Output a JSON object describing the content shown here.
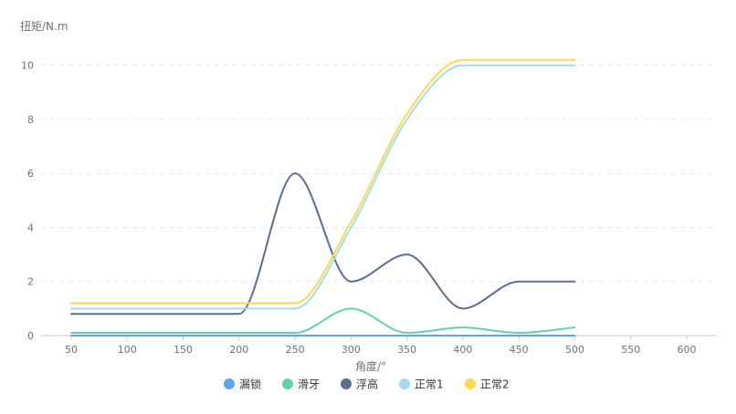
{
  "chart_data": {
    "type": "line",
    "ylabel": "扭矩/N.m",
    "xlabel": "角度/°",
    "xlim": [
      50,
      600
    ],
    "ylim": [
      0,
      11
    ],
    "x_ticks": [
      50,
      100,
      150,
      200,
      250,
      300,
      350,
      400,
      450,
      500,
      550,
      600
    ],
    "y_ticks": [
      0,
      2,
      4,
      6,
      8,
      10
    ],
    "grid": "horizontal-dashed",
    "legend_position": "bottom-center",
    "smooth": true,
    "series": [
      {
        "name": "漏锁",
        "color": "#5fa3e8",
        "x": [
          50,
          100,
          150,
          200,
          250,
          300,
          350,
          400,
          450,
          500
        ],
        "values": [
          0,
          0,
          0,
          0,
          0,
          0,
          0,
          0,
          0,
          0
        ]
      },
      {
        "name": "滑牙",
        "color": "#5fd3ad",
        "x": [
          50,
          100,
          150,
          200,
          250,
          300,
          350,
          400,
          450,
          500
        ],
        "values": [
          0.1,
          0.1,
          0.1,
          0.1,
          0.1,
          1.0,
          0.1,
          0.3,
          0.1,
          0.3
        ]
      },
      {
        "name": "浮高",
        "color": "#5a6e91",
        "x": [
          50,
          100,
          150,
          200,
          250,
          300,
          350,
          400,
          450,
          500
        ],
        "values": [
          0.8,
          0.8,
          0.8,
          0.8,
          6.0,
          2.0,
          3.0,
          1.0,
          2.0,
          2.0
        ]
      },
      {
        "name": "正常1",
        "color": "#a4dcef",
        "x": [
          50,
          100,
          150,
          200,
          250,
          300,
          350,
          400,
          450,
          500
        ],
        "values": [
          1.0,
          1.0,
          1.0,
          1.0,
          1.0,
          4.0,
          8.0,
          10.0,
          10.0,
          10.0
        ]
      },
      {
        "name": "正常2",
        "color": "#fcd94c",
        "x": [
          50,
          100,
          150,
          200,
          250,
          300,
          350,
          400,
          450,
          500
        ],
        "values": [
          1.2,
          1.2,
          1.2,
          1.2,
          1.2,
          4.2,
          8.2,
          10.2,
          10.2,
          10.2
        ]
      }
    ]
  }
}
